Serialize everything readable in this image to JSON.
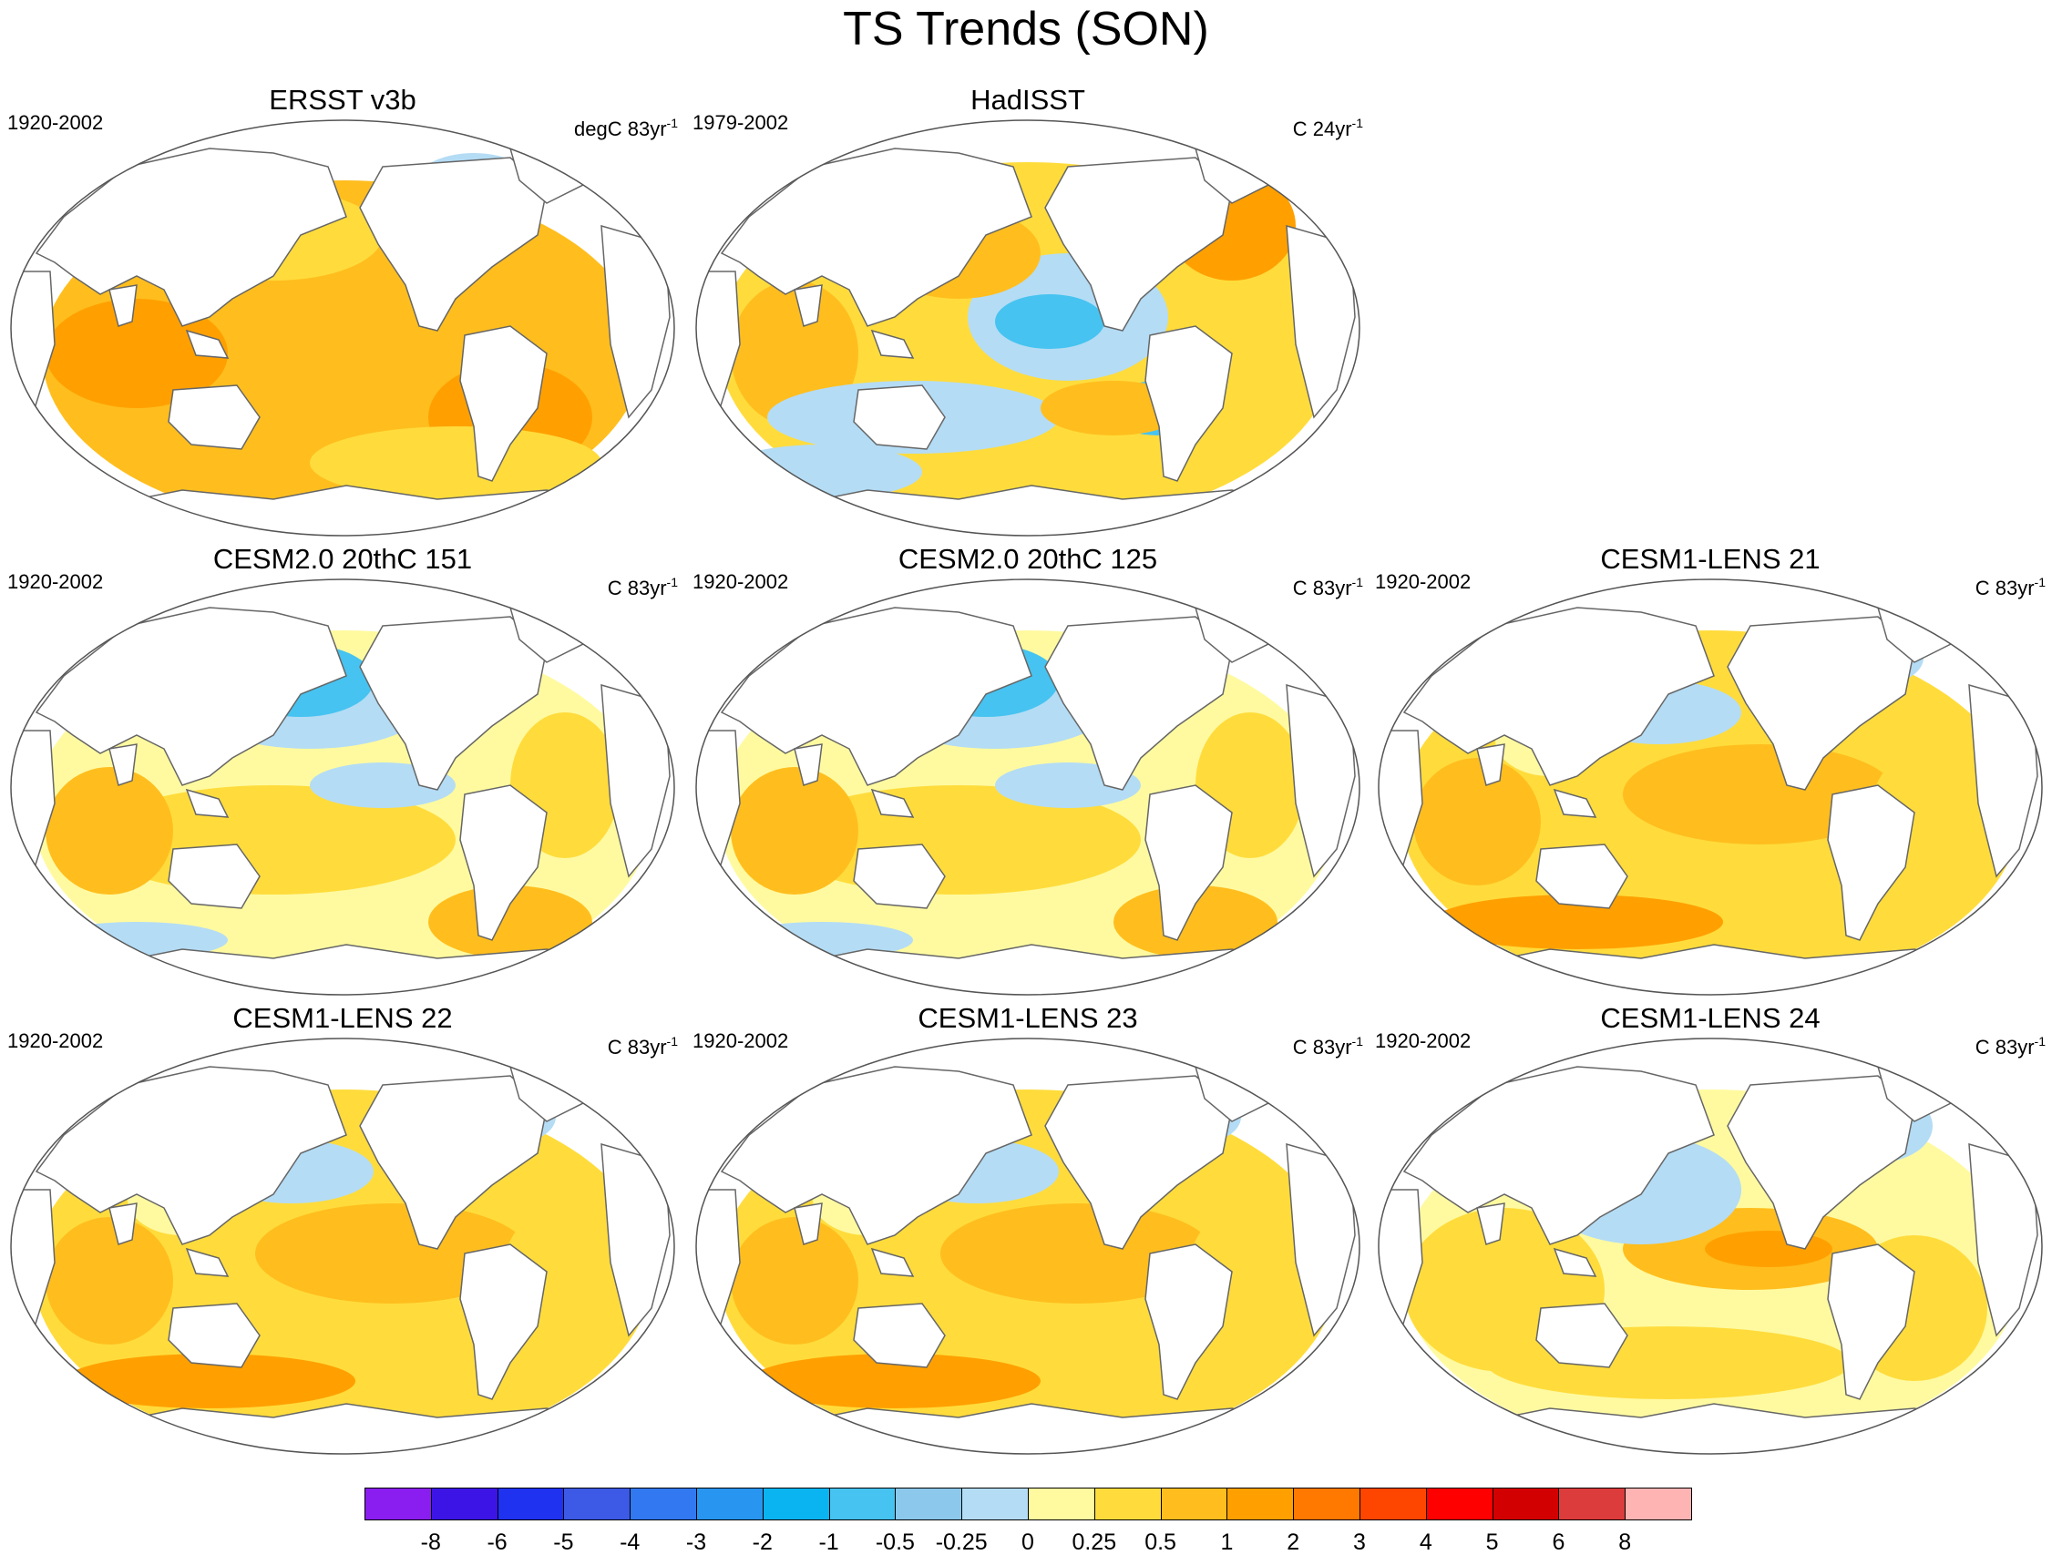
{
  "title": "TS Trends (SON)",
  "panels": [
    {
      "title": "ERSST v3b",
      "period": "1920-2002",
      "units_prefix": "degC 83yr",
      "units_exp": "-1",
      "pattern": "warm_uniform"
    },
    {
      "title": "HadISST",
      "period": "1979-2002",
      "units_prefix": "C 24yr",
      "units_exp": "-1",
      "pattern": "la_nina"
    },
    {
      "title": "CESM2.0 20thC 151",
      "period": "1920-2002",
      "units_prefix": "C 83yr",
      "units_exp": "-1",
      "pattern": "north_pacific_cool"
    },
    {
      "title": "CESM2.0 20thC 125",
      "period": "1920-2002",
      "units_prefix": "C 83yr",
      "units_exp": "-1",
      "pattern": "north_pacific_cool"
    },
    {
      "title": "CESM1-LENS 21",
      "period": "1920-2002",
      "units_prefix": "C 83yr",
      "units_exp": "-1",
      "pattern": "warm_mild"
    },
    {
      "title": "CESM1-LENS 22",
      "period": "1920-2002",
      "units_prefix": "C 83yr",
      "units_exp": "-1",
      "pattern": "warm_mild"
    },
    {
      "title": "CESM1-LENS 23",
      "period": "1920-2002",
      "units_prefix": "C 83yr",
      "units_exp": "-1",
      "pattern": "warm_mild"
    },
    {
      "title": "CESM1-LENS 24",
      "period": "1920-2002",
      "units_prefix": "C 83yr",
      "units_exp": "-1",
      "pattern": "el_nino"
    }
  ],
  "colorbar": {
    "labels": [
      "-8",
      "-6",
      "-5",
      "-4",
      "-3",
      "-2",
      "-1",
      "-0.5",
      "-0.25",
      "0",
      "0.25",
      "0.5",
      "1",
      "2",
      "3",
      "4",
      "5",
      "6",
      "8"
    ],
    "colors": [
      "#8a1ef0",
      "#3c14e6",
      "#1e32f0",
      "#3c5ae6",
      "#3278f0",
      "#2896f0",
      "#0ab4f0",
      "#46c3f0",
      "#8cc8eb",
      "#b4dcf5",
      "#fffaa0",
      "#ffdc3c",
      "#ffbe1e",
      "#ffa000",
      "#ff7800",
      "#ff4600",
      "#ff0000",
      "#d20000",
      "#dc3c3c",
      "#ffb4b4"
    ]
  }
}
